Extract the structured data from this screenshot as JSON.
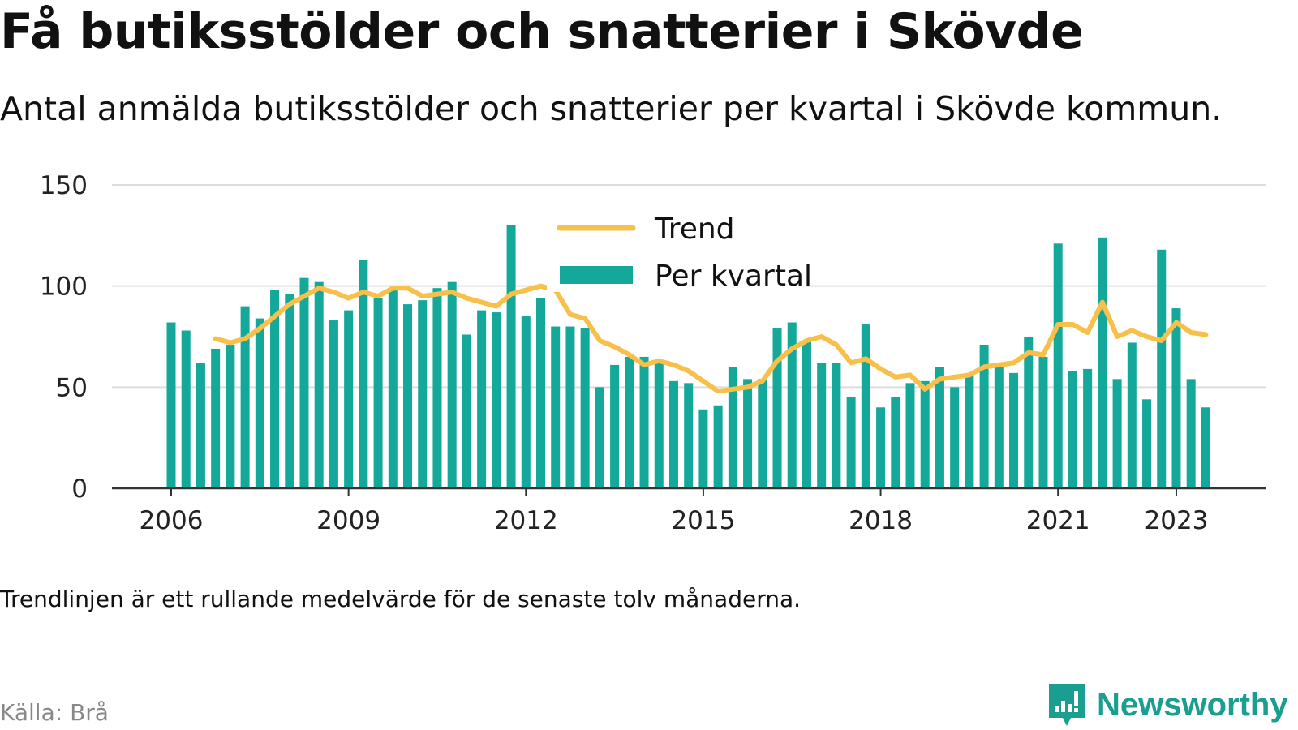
{
  "header": {
    "title": "Få butiksstölder och snatterier i Skövde",
    "subtitle": "Antal anmälda butiksstölder och snatterier per kvartal i Skövde kommun."
  },
  "footer": {
    "note": "Trendlinjen är ett rullande medelvärde för de senaste tolv månaderna.",
    "source": "Källa: Brå",
    "brand": "Newsworthy"
  },
  "colors": {
    "bar": "#14a89b",
    "trend": "#f7c04a",
    "grid": "#dddddd",
    "axis": "#333333",
    "brand": "#1a9e8f"
  },
  "chart_data": {
    "type": "bar",
    "x": [
      "2006Q1",
      "2006Q2",
      "2006Q3",
      "2006Q4",
      "2007Q1",
      "2007Q2",
      "2007Q3",
      "2007Q4",
      "2008Q1",
      "2008Q2",
      "2008Q3",
      "2008Q4",
      "2009Q1",
      "2009Q2",
      "2009Q3",
      "2009Q4",
      "2010Q1",
      "2010Q2",
      "2010Q3",
      "2010Q4",
      "2011Q1",
      "2011Q2",
      "2011Q3",
      "2011Q4",
      "2012Q1",
      "2012Q2",
      "2012Q3",
      "2012Q4",
      "2013Q1",
      "2013Q2",
      "2013Q3",
      "2013Q4",
      "2014Q1",
      "2014Q2",
      "2014Q3",
      "2014Q4",
      "2015Q1",
      "2015Q2",
      "2015Q3",
      "2015Q4",
      "2016Q1",
      "2016Q2",
      "2016Q3",
      "2016Q4",
      "2017Q1",
      "2017Q2",
      "2017Q3",
      "2017Q4",
      "2018Q1",
      "2018Q2",
      "2018Q3",
      "2018Q4",
      "2019Q1",
      "2019Q2",
      "2019Q3",
      "2019Q4",
      "2020Q1",
      "2020Q2",
      "2020Q3",
      "2020Q4",
      "2021Q1",
      "2021Q2",
      "2021Q3",
      "2021Q4",
      "2022Q1",
      "2022Q2",
      "2022Q3",
      "2022Q4",
      "2023Q1",
      "2023Q2",
      "2023Q3"
    ],
    "series": [
      {
        "name": "Per kvartal",
        "type": "bar",
        "values": [
          82,
          78,
          62,
          69,
          71,
          90,
          84,
          98,
          96,
          104,
          102,
          83,
          88,
          113,
          94,
          99,
          91,
          93,
          99,
          102,
          76,
          88,
          87,
          130,
          85,
          94,
          80,
          80,
          79,
          50,
          61,
          65,
          65,
          63,
          53,
          52,
          39,
          41,
          60,
          54,
          54,
          79,
          82,
          73,
          62,
          62,
          45,
          81,
          40,
          45,
          52,
          53,
          60,
          50,
          56,
          71,
          60,
          57,
          75,
          65,
          121,
          58,
          59,
          124,
          54,
          72,
          44,
          118,
          89,
          54,
          40
        ]
      },
      {
        "name": "Trend",
        "type": "line",
        "values": [
          null,
          null,
          null,
          74,
          72,
          74,
          79,
          85,
          91,
          95,
          99,
          97,
          94,
          97,
          95,
          99,
          99,
          95,
          96,
          97,
          94,
          92,
          90,
          96,
          98,
          100,
          98,
          86,
          84,
          73,
          70,
          66,
          61,
          63,
          61,
          58,
          53,
          48,
          49,
          50,
          53,
          63,
          69,
          73,
          75,
          71,
          62,
          64,
          59,
          55,
          56,
          49,
          54,
          55,
          56,
          60,
          61,
          62,
          67,
          66,
          81,
          81,
          77,
          92,
          75,
          78,
          75,
          73,
          82,
          77,
          76
        ]
      }
    ],
    "x_tick_labels": [
      "2006",
      "2009",
      "2012",
      "2015",
      "2018",
      "2021",
      "2023"
    ],
    "x_tick_years": [
      2006,
      2009,
      2012,
      2015,
      2018,
      2021,
      2023
    ],
    "y_ticks": [
      0,
      50,
      100,
      150
    ],
    "ylim": [
      0,
      150
    ],
    "grid": true,
    "legend_position": "top-center",
    "legend": [
      {
        "label": "Trend",
        "kind": "line"
      },
      {
        "label": "Per kvartal",
        "kind": "bar"
      }
    ]
  }
}
